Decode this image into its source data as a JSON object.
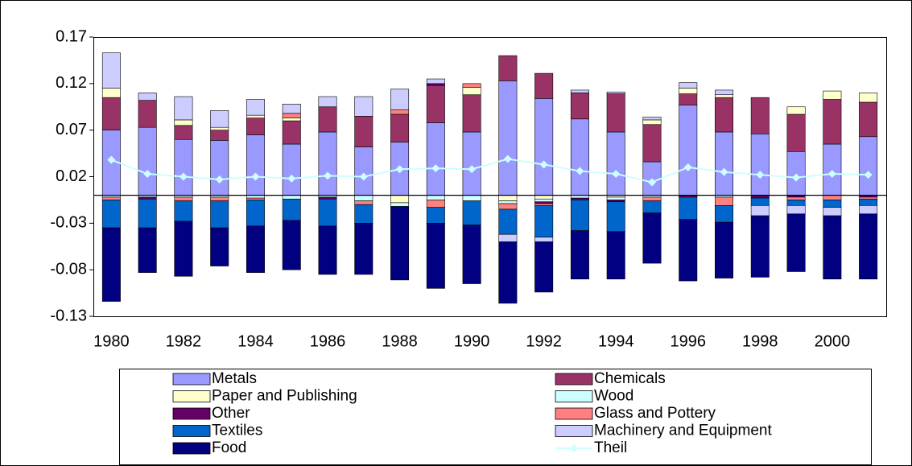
{
  "chart_data": {
    "type": "bar",
    "stacked": true,
    "categories": [
      "1980",
      null,
      "1982",
      null,
      "1984",
      null,
      "1986",
      null,
      "1988",
      null,
      "1990",
      null,
      "1992",
      null,
      "1994",
      null,
      "1996",
      null,
      "1998",
      null,
      "2000",
      null
    ],
    "ylim": [
      -0.13,
      0.17
    ],
    "yticks": [
      0.17,
      0.12,
      0.07,
      0.02,
      -0.03,
      -0.08,
      -0.13
    ],
    "series": [
      {
        "name": "Metals",
        "type": "bar",
        "color": "#9999ff",
        "values": [
          0.07,
          0.073,
          0.06,
          0.059,
          0.065,
          0.055,
          0.068,
          0.052,
          0.057,
          0.078,
          0.068,
          0.123,
          0.104,
          0.082,
          0.068,
          0.036,
          0.097,
          0.068,
          0.066,
          0.047,
          0.055,
          0.063
        ]
      },
      {
        "name": "Chemicals",
        "type": "bar",
        "color": "#993366",
        "values": [
          0.035,
          0.029,
          0.015,
          0.011,
          0.018,
          0.025,
          0.027,
          0.033,
          0.03,
          0.04,
          0.04,
          0.027,
          0.027,
          0.028,
          0.041,
          0.04,
          0.012,
          0.037,
          0.039,
          0.04,
          0.048,
          0.037
        ]
      },
      {
        "name": "Paper and Publishing",
        "type": "bar",
        "color": "#ffffcc",
        "values": [
          0.01,
          0,
          0.006,
          0.003,
          0.003,
          0.003,
          0,
          0,
          -0.008,
          0,
          0.008,
          -0.006,
          -0.004,
          0,
          -0.002,
          0.005,
          0.006,
          0.003,
          0,
          0.008,
          0.009,
          0.01
        ]
      },
      {
        "name": "Wood",
        "type": "bar",
        "color": "#ccffff",
        "values": [
          -0.002,
          -0.002,
          -0.002,
          -0.002,
          -0.003,
          -0.004,
          -0.002,
          -0.006,
          -0.004,
          -0.005,
          -0.006,
          -0.003,
          -0.003,
          -0.003,
          -0.003,
          -0.002,
          0,
          -0.002,
          0,
          0,
          0,
          0
        ]
      },
      {
        "name": "Other",
        "type": "bar",
        "color": "#660066",
        "values": [
          0,
          -0.002,
          0,
          0,
          0,
          0,
          -0.002,
          0,
          0,
          0.002,
          0,
          0,
          -0.002,
          -0.002,
          -0.002,
          0,
          -0.002,
          0,
          -0.003,
          -0.002,
          0,
          -0.002
        ]
      },
      {
        "name": "Glass and Pottery",
        "type": "bar",
        "color": "#ff8080",
        "values": [
          -0.003,
          0,
          -0.004,
          -0.004,
          -0.002,
          0.005,
          0,
          -0.004,
          0.005,
          -0.008,
          0.004,
          -0.006,
          -0.002,
          0,
          0,
          -0.004,
          0,
          -0.009,
          0,
          -0.003,
          -0.005,
          -0.002
        ]
      },
      {
        "name": "Textiles",
        "type": "bar",
        "color": "#0066cc",
        "values": [
          -0.03,
          -0.031,
          -0.022,
          -0.029,
          -0.028,
          -0.023,
          -0.029,
          -0.02,
          0,
          -0.017,
          -0.026,
          -0.027,
          -0.034,
          -0.033,
          -0.032,
          -0.013,
          -0.024,
          -0.018,
          -0.008,
          -0.006,
          -0.008,
          -0.007
        ]
      },
      {
        "name": "Machinery and Equipment",
        "type": "bar",
        "color": "#ccccff",
        "values": [
          0.038,
          0.008,
          0.025,
          0.018,
          0.017,
          0.01,
          0.011,
          0.021,
          0.022,
          0.005,
          0,
          -0.008,
          -0.005,
          0.003,
          0.002,
          0.003,
          0.006,
          0.005,
          -0.011,
          -0.009,
          -0.009,
          -0.009
        ]
      },
      {
        "name": "Food",
        "type": "bar",
        "color": "#000080",
        "values": [
          -0.079,
          -0.048,
          -0.059,
          -0.041,
          -0.05,
          -0.053,
          -0.052,
          -0.055,
          -0.079,
          -0.07,
          -0.063,
          -0.066,
          -0.054,
          -0.052,
          -0.051,
          -0.054,
          -0.066,
          -0.06,
          -0.066,
          -0.062,
          -0.068,
          -0.07
        ]
      },
      {
        "name": "Theil",
        "type": "line",
        "color": "#ccffff",
        "values": [
          0.038,
          0.023,
          0.02,
          0.017,
          0.02,
          0.018,
          0.021,
          0.02,
          0.028,
          0.029,
          0.028,
          0.039,
          0.033,
          0.026,
          0.023,
          0.014,
          0.03,
          0.025,
          0.022,
          0.019,
          0.023,
          0.022
        ]
      }
    ]
  }
}
